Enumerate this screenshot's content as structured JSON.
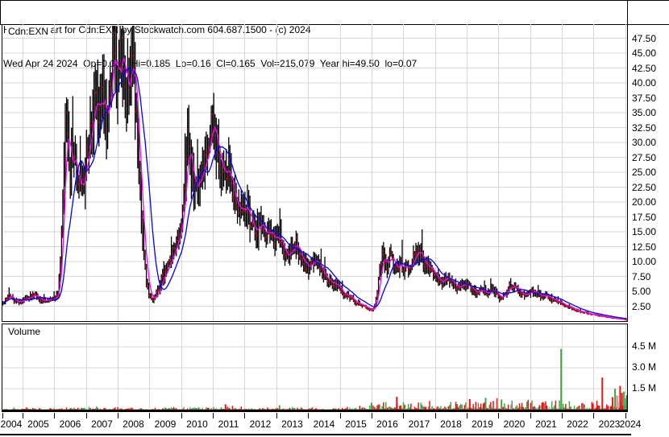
{
  "header": {
    "line1": "Historic Chart for Cdn:EXN by Stockwatch.com 604.687.1500 - (c) 2024",
    "line2_parts": [
      "Wed Apr 24 2024",
      "Op=0.185",
      "Hi=0.185",
      "Lo=0.16",
      "Cl=0.165",
      "Vol=215,079",
      "Year hi=49.50",
      "lo=0.07"
    ]
  },
  "price_panel": {
    "symbol_label": "Cdn:EXN",
    "axis_ticks": [
      "47.50",
      "45.00",
      "42.50",
      "40.00",
      "37.50",
      "35.00",
      "32.50",
      "30.00",
      "27.50",
      "25.00",
      "22.50",
      "20.00",
      "17.50",
      "15.00",
      "12.50",
      "10.00",
      "7.50",
      "5.00",
      "2.50"
    ]
  },
  "volume_panel": {
    "label": "Volume",
    "axis_ticks": [
      "4.5 M",
      "3.0 M",
      "1.5 M"
    ]
  },
  "x_axis": {
    "years": [
      "2004",
      "2005",
      "2006",
      "2007",
      "2008",
      "2009",
      "2010",
      "2011",
      "2012",
      "2013",
      "2014",
      "2015",
      "2016",
      "2017",
      "2018",
      "2019",
      "2020",
      "2021",
      "2022",
      "2023",
      "2024"
    ]
  },
  "colors": {
    "grid": "#d6d6d6",
    "border": "#000000",
    "bar": "#000000",
    "close_tick": "#e80000",
    "ma_fast": "#ff00ff",
    "ma_slow": "#0000ff",
    "vol_up": "#44a544",
    "vol_down": "#e81414",
    "vol_neutral": "#a8a8a8",
    "bg": "#ffffff"
  },
  "chart_data": {
    "type": "line",
    "title": "Historic Chart for Cdn:EXN",
    "symbol": "Cdn:EXN",
    "stats": {
      "date": "Wed Apr 24 2024",
      "open": 0.185,
      "high": 0.185,
      "low": 0.16,
      "close": 0.165,
      "volume": 215079,
      "year_high": 49.5,
      "year_low": 0.07
    },
    "x_range": [
      2004.38,
      2024.05
    ],
    "price_axis": {
      "min": 0,
      "max": 50,
      "tick_step": 2.5
    },
    "volume_axis": {
      "unit": "millions",
      "ticks": [
        1.5,
        3.0,
        4.5
      ],
      "max": 5.9
    },
    "grid": true,
    "legend_position": "none",
    "series": [
      {
        "name": "weekly-price-close-path",
        "style": "ohlc-bars",
        "color": "#000000",
        "points": [
          [
            2004.38,
            3.0
          ],
          [
            2004.5,
            3.6
          ],
          [
            2004.6,
            4.4
          ],
          [
            2004.75,
            3.4
          ],
          [
            2004.95,
            3.2
          ],
          [
            2005.15,
            3.9
          ],
          [
            2005.4,
            4.3
          ],
          [
            2005.6,
            3.5
          ],
          [
            2005.8,
            3.7
          ],
          [
            2006.0,
            3.8
          ],
          [
            2006.12,
            4.6
          ],
          [
            2006.22,
            12
          ],
          [
            2006.3,
            26
          ],
          [
            2006.38,
            35
          ],
          [
            2006.45,
            28
          ],
          [
            2006.52,
            25
          ],
          [
            2006.6,
            30
          ],
          [
            2006.7,
            24
          ],
          [
            2006.8,
            22.5
          ],
          [
            2006.95,
            25
          ],
          [
            2007.1,
            31
          ],
          [
            2007.2,
            35
          ],
          [
            2007.3,
            38
          ],
          [
            2007.4,
            34
          ],
          [
            2007.5,
            40
          ],
          [
            2007.57,
            36
          ],
          [
            2007.65,
            34
          ],
          [
            2007.75,
            37
          ],
          [
            2007.83,
            45
          ],
          [
            2007.88,
            48
          ],
          [
            2007.95,
            41
          ],
          [
            2008.05,
            43
          ],
          [
            2008.12,
            46
          ],
          [
            2008.2,
            41
          ],
          [
            2008.3,
            39
          ],
          [
            2008.42,
            44
          ],
          [
            2008.5,
            40
          ],
          [
            2008.58,
            34
          ],
          [
            2008.65,
            28
          ],
          [
            2008.72,
            21
          ],
          [
            2008.8,
            13
          ],
          [
            2008.9,
            6.5
          ],
          [
            2009.0,
            4.3
          ],
          [
            2009.1,
            3.8
          ],
          [
            2009.25,
            5
          ],
          [
            2009.4,
            7
          ],
          [
            2009.55,
            9
          ],
          [
            2009.7,
            10.5
          ],
          [
            2009.85,
            12.5
          ],
          [
            2010.0,
            15
          ],
          [
            2010.1,
            22
          ],
          [
            2010.2,
            31
          ],
          [
            2010.28,
            27
          ],
          [
            2010.38,
            23
          ],
          [
            2010.5,
            21
          ],
          [
            2010.62,
            23.5
          ],
          [
            2010.75,
            26
          ],
          [
            2010.88,
            30
          ],
          [
            2010.97,
            34
          ],
          [
            2011.05,
            32
          ],
          [
            2011.15,
            28
          ],
          [
            2011.28,
            26
          ],
          [
            2011.4,
            24
          ],
          [
            2011.5,
            25.5
          ],
          [
            2011.6,
            23
          ],
          [
            2011.7,
            21
          ],
          [
            2011.85,
            19
          ],
          [
            2012.0,
            20.5
          ],
          [
            2012.1,
            18.5
          ],
          [
            2012.25,
            16
          ],
          [
            2012.4,
            15
          ],
          [
            2012.5,
            17
          ],
          [
            2012.62,
            14.5
          ],
          [
            2012.75,
            15.5
          ],
          [
            2012.9,
            13.5
          ],
          [
            2013.05,
            14.5
          ],
          [
            2013.2,
            12
          ],
          [
            2013.35,
            10.5
          ],
          [
            2013.5,
            12
          ],
          [
            2013.62,
            13
          ],
          [
            2013.75,
            10.5
          ],
          [
            2013.9,
            9.5
          ],
          [
            2014.05,
            9
          ],
          [
            2014.2,
            10.5
          ],
          [
            2014.35,
            9.5
          ],
          [
            2014.5,
            7.5
          ],
          [
            2014.65,
            6.8
          ],
          [
            2014.8,
            6.2
          ],
          [
            2014.95,
            5.8
          ],
          [
            2015.1,
            4.8
          ],
          [
            2015.25,
            4.2
          ],
          [
            2015.4,
            3.6
          ],
          [
            2015.55,
            3.1
          ],
          [
            2015.7,
            2.6
          ],
          [
            2015.85,
            2.2
          ],
          [
            2015.98,
            1.9
          ],
          [
            2016.08,
            2.1
          ],
          [
            2016.18,
            5
          ],
          [
            2016.28,
            9.5
          ],
          [
            2016.35,
            12
          ],
          [
            2016.42,
            10
          ],
          [
            2016.5,
            9
          ],
          [
            2016.58,
            11
          ],
          [
            2016.68,
            9.5
          ],
          [
            2016.78,
            8.5
          ],
          [
            2016.9,
            10
          ],
          [
            2017.0,
            9
          ],
          [
            2017.1,
            9.8
          ],
          [
            2017.2,
            9
          ],
          [
            2017.3,
            10.5
          ],
          [
            2017.42,
            12.3
          ],
          [
            2017.5,
            11.5
          ],
          [
            2017.6,
            10.5
          ],
          [
            2017.7,
            9.8
          ],
          [
            2017.8,
            9
          ],
          [
            2017.95,
            8
          ],
          [
            2018.1,
            7
          ],
          [
            2018.2,
            6.3
          ],
          [
            2018.35,
            7.8
          ],
          [
            2018.45,
            7.2
          ],
          [
            2018.6,
            6.2
          ],
          [
            2018.75,
            5.8
          ],
          [
            2018.9,
            6.5
          ],
          [
            2019.05,
            6
          ],
          [
            2019.2,
            5.2
          ],
          [
            2019.35,
            4.8
          ],
          [
            2019.5,
            5.4
          ],
          [
            2019.65,
            4.6
          ],
          [
            2019.8,
            5.2
          ],
          [
            2019.95,
            4.6
          ],
          [
            2020.05,
            3.4
          ],
          [
            2020.2,
            4.6
          ],
          [
            2020.35,
            6.2
          ],
          [
            2020.45,
            5.6
          ],
          [
            2020.6,
            5.2
          ],
          [
            2020.75,
            4.4
          ],
          [
            2020.9,
            4.2
          ],
          [
            2021.05,
            5.2
          ],
          [
            2021.2,
            4.6
          ],
          [
            2021.35,
            4.1
          ],
          [
            2021.5,
            4.4
          ],
          [
            2021.65,
            3.9
          ],
          [
            2021.8,
            3.5
          ],
          [
            2021.95,
            3.1
          ],
          [
            2022.1,
            2.7
          ],
          [
            2022.25,
            2.3
          ],
          [
            2022.4,
            1.9
          ],
          [
            2022.6,
            1.6
          ],
          [
            2022.8,
            1.3
          ],
          [
            2023.0,
            1.1
          ],
          [
            2023.15,
            0.95
          ],
          [
            2023.3,
            0.8
          ],
          [
            2023.5,
            0.6
          ],
          [
            2023.7,
            0.45
          ],
          [
            2023.9,
            0.35
          ],
          [
            2024.0,
            0.25
          ],
          [
            2024.05,
            0.17
          ]
        ]
      },
      {
        "name": "moving-average-fast",
        "style": "line",
        "color": "#ff00ff",
        "derived": "short simple moving average of close"
      },
      {
        "name": "moving-average-slow",
        "style": "line",
        "color": "#0000ff",
        "derived": "long simple moving average of close"
      }
    ],
    "volume": {
      "unit": "millions",
      "typical_level_path": [
        [
          2004.4,
          0.07
        ],
        [
          2006.3,
          0.13
        ],
        [
          2007.0,
          0.1
        ],
        [
          2008.0,
          0.12
        ],
        [
          2009.0,
          0.1
        ],
        [
          2010.0,
          0.14
        ],
        [
          2011.0,
          0.13
        ],
        [
          2012.0,
          0.16
        ],
        [
          2013.0,
          0.16
        ],
        [
          2014.0,
          0.12
        ],
        [
          2015.0,
          0.1
        ],
        [
          2015.9,
          0.3
        ],
        [
          2016.3,
          0.5
        ],
        [
          2016.7,
          0.4
        ],
        [
          2017.0,
          0.38
        ],
        [
          2017.5,
          0.45
        ],
        [
          2018.0,
          0.35
        ],
        [
          2018.6,
          0.5
        ],
        [
          2019.0,
          0.5
        ],
        [
          2019.6,
          0.55
        ],
        [
          2020.0,
          0.6
        ],
        [
          2020.6,
          0.6
        ],
        [
          2021.0,
          0.5
        ],
        [
          2021.6,
          0.5
        ],
        [
          2022.0,
          0.5
        ],
        [
          2022.5,
          0.42
        ],
        [
          2023.0,
          0.5
        ],
        [
          2023.4,
          0.6
        ],
        [
          2023.7,
          0.9
        ],
        [
          2024.0,
          1.0
        ],
        [
          2024.05,
          0.9
        ]
      ],
      "spikes": [
        [
          2011.4,
          0.38,
          "down"
        ],
        [
          2013.1,
          0.32,
          "up"
        ],
        [
          2016.0,
          0.5,
          "up"
        ],
        [
          2016.8,
          0.92,
          "down"
        ],
        [
          2019.1,
          0.75,
          "down"
        ],
        [
          2019.6,
          0.85,
          "up"
        ],
        [
          2020.1,
          0.72,
          "up"
        ],
        [
          2021.98,
          4.35,
          "up"
        ],
        [
          2023.28,
          2.3,
          "down"
        ],
        [
          2023.6,
          0.9,
          "down"
        ],
        [
          2023.68,
          1.5,
          "up"
        ],
        [
          2023.76,
          1.0,
          "neutral"
        ],
        [
          2023.84,
          1.7,
          "down"
        ],
        [
          2023.9,
          1.2,
          "down"
        ],
        [
          2023.96,
          1.3,
          "up"
        ],
        [
          2024.02,
          0.8,
          "up"
        ]
      ]
    }
  }
}
